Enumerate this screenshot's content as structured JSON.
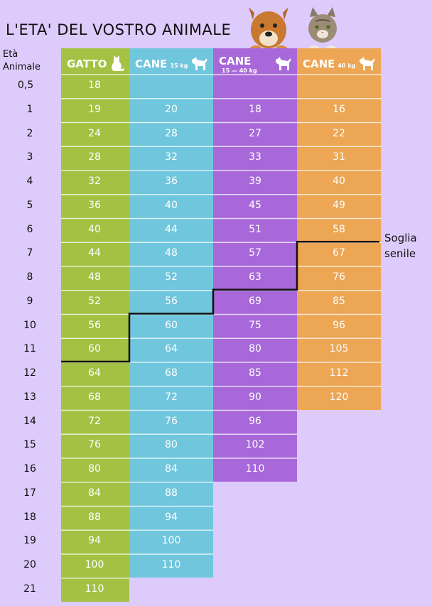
{
  "title": "L'ETA' DEL VOSTRO ANIMALE",
  "row_header_line1": "Età",
  "row_header_line2": "Animale",
  "senile_line1": "Soglia",
  "senile_line2": "senile",
  "images": {
    "top_right": "dog-and-cat-photo",
    "column_icons": [
      "cat-icon",
      "small-dog-icon",
      "medium-dog-icon",
      "large-dog-icon"
    ]
  },
  "colors": {
    "background": "#dccbfb",
    "gatto": "#a4c143",
    "cane_small": "#6fc6dd",
    "cane_medium": "#a868d9",
    "cane_large": "#eca654",
    "threshold_line": "#111111"
  },
  "chart_data": {
    "type": "table",
    "title": "L'ETA' DEL VOSTRO ANIMALE",
    "row_label_header": "Età Animale",
    "rows": [
      "0,5",
      "1",
      "2",
      "3",
      "4",
      "5",
      "6",
      "7",
      "8",
      "9",
      "10",
      "11",
      "12",
      "13",
      "14",
      "15",
      "16",
      "17",
      "18",
      "19",
      "20",
      "21"
    ],
    "columns": [
      {
        "label": "GATTO",
        "sub": "",
        "values": [
          "18",
          "19",
          "24",
          "28",
          "32",
          "36",
          "40",
          "44",
          "48",
          "52",
          "56",
          "60",
          "64",
          "68",
          "72",
          "76",
          "80",
          "84",
          "88",
          "94",
          "100",
          "110"
        ],
        "senile_from_row": 12
      },
      {
        "label": "CANE",
        "sub": "15 kg",
        "values": [
          "",
          "20",
          "28",
          "32",
          "36",
          "40",
          "44",
          "48",
          "52",
          "56",
          "60",
          "64",
          "68",
          "72",
          "76",
          "80",
          "84",
          "88",
          "94",
          "100",
          "110",
          ""
        ],
        "senile_from_row": 10
      },
      {
        "label": "CANE",
        "sub": "15 — 40 kg",
        "values": [
          "",
          "18",
          "27",
          "33",
          "39",
          "45",
          "51",
          "57",
          "63",
          "69",
          "75",
          "80",
          "85",
          "90",
          "96",
          "102",
          "110",
          "",
          "",
          "",
          "",
          ""
        ],
        "senile_from_row": 9
      },
      {
        "label": "CANE",
        "sub": "40 kg",
        "values": [
          "",
          "16",
          "22",
          "31",
          "40",
          "49",
          "58",
          "67",
          "76",
          "85",
          "96",
          "105",
          "112",
          "120",
          "",
          "",
          "",
          "",
          "",
          "",
          "",
          ""
        ],
        "senile_from_row": 7
      }
    ],
    "annotation": "Soglia senile"
  }
}
